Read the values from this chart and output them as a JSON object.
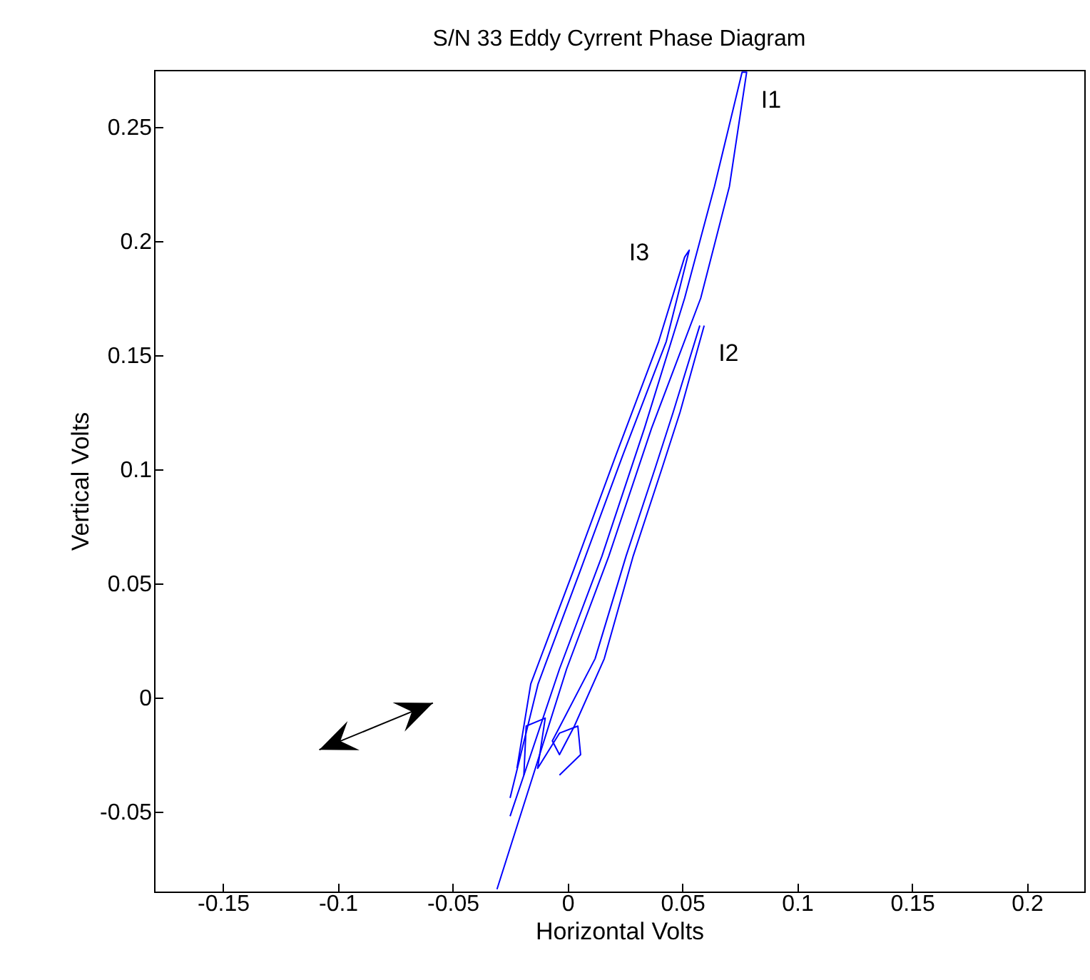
{
  "chart_data": {
    "type": "line",
    "title": "S/N 33 Eddy Cyrrent Phase Diagram",
    "xlabel": "Horizontal Volts",
    "ylabel": "Vertical Volts",
    "xlim": [
      -0.18,
      0.225
    ],
    "ylim": [
      -0.085,
      0.275
    ],
    "xticks": [
      -0.15,
      -0.1,
      -0.05,
      0,
      0.05,
      0.1,
      0.15,
      0.2
    ],
    "yticks": [
      -0.05,
      0,
      0.05,
      0.1,
      0.15,
      0.2,
      0.25
    ],
    "grid": false,
    "series": [
      {
        "name": "I1",
        "color": "#0000ff",
        "x": [
          -0.0307,
          -0.014,
          -0.0004,
          0.018,
          0.0366,
          0.058,
          0.0705,
          0.078,
          0.076,
          0.064,
          0.051,
          0.0335,
          0.015,
          -0.0035,
          -0.018,
          -0.025
        ],
        "values": [
          -0.084,
          -0.031,
          0.0125,
          0.062,
          0.118,
          0.175,
          0.224,
          0.274,
          0.274,
          0.224,
          0.175,
          0.118,
          0.062,
          0.0125,
          -0.031,
          -0.052
        ]
      },
      {
        "name": "I2",
        "color": "#0000ff",
        "x": [
          0.0595,
          0.049,
          0.041,
          0.0286,
          0.016,
          0.003,
          -0.0035,
          -0.0066,
          0.012,
          0.0255,
          0.038,
          0.046,
          0.0576
        ],
        "values": [
          0.163,
          0.125,
          0.1,
          0.062,
          0.017,
          -0.0125,
          -0.025,
          -0.019,
          0.017,
          0.062,
          0.1,
          0.125,
          0.163
        ]
      },
      {
        "name": "I3",
        "color": "#0000ff",
        "x": [
          -0.025,
          -0.0128,
          0.0057,
          0.024,
          0.043,
          0.053,
          0.051,
          0.0397,
          0.021,
          0.0027,
          -0.016,
          -0.022
        ],
        "values": [
          -0.044,
          0.006,
          0.056,
          0.106,
          0.156,
          0.196,
          0.193,
          0.156,
          0.106,
          0.056,
          0.006,
          -0.031
        ]
      },
      {
        "color": "#0000ff",
        "x": [
          -0.019,
          -0.018,
          -0.0097,
          -0.013,
          -0.0035,
          0.0045,
          0.0057,
          -0.0035
        ],
        "values": [
          -0.034,
          -0.0125,
          -0.009,
          -0.031,
          -0.0156,
          -0.0125,
          -0.025,
          -0.034
        ]
      }
    ]
  }
}
